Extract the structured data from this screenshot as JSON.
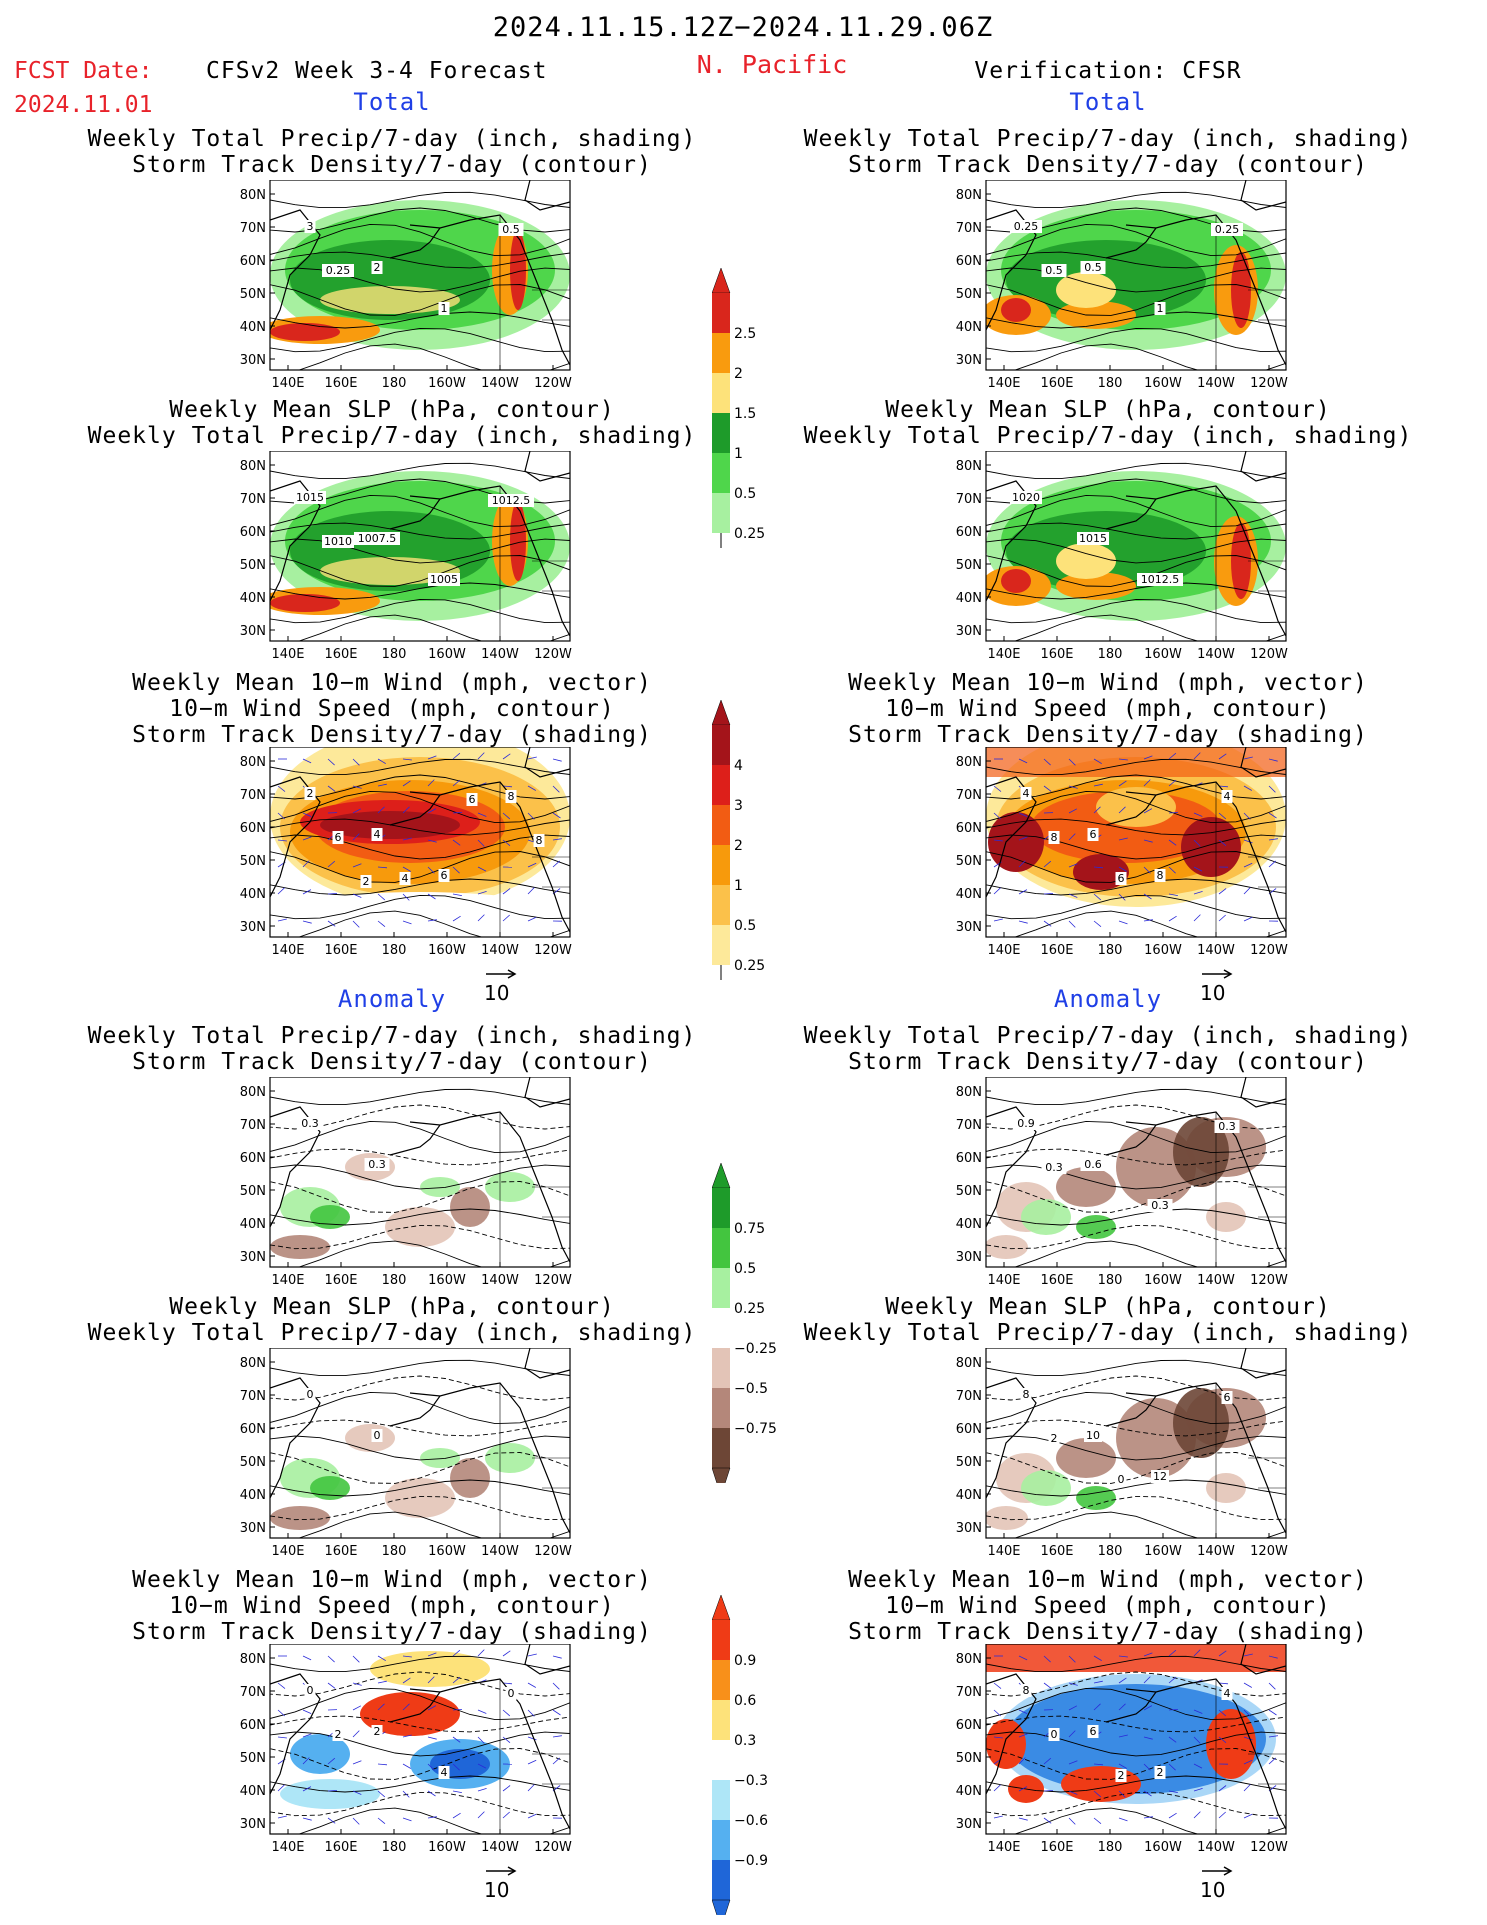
{
  "header": {
    "date_range": "2024.11.15.12Z−2024.11.29.06Z",
    "fcst_label": "FCST Date:",
    "fcst_date": "2024.11.01",
    "forecast_title": "CFSv2 Week 3-4 Forecast",
    "region": "N. Pacific",
    "verification": "Verification: CFSR"
  },
  "sections": {
    "total_label": "Total",
    "anomaly_label": "Anomaly"
  },
  "titles": {
    "precip_storm": [
      "Weekly Total Precip/7-day (inch, shading)",
      "Storm Track Density/7-day (contour)"
    ],
    "slp_precip": [
      "Weekly Mean SLP (hPa, contour)",
      "Weekly Total Precip/7-day (inch, shading)"
    ],
    "wind_storm": [
      "Weekly Mean 10−m Wind (mph, vector)",
      "10−m Wind Speed (mph, contour)",
      "Storm Track Density/7-day (shading)"
    ]
  },
  "axes": {
    "lat_labels": [
      "80N",
      "70N",
      "60N",
      "50N",
      "40N",
      "30N"
    ],
    "lon_labels": [
      "140E",
      "160E",
      "180",
      "160W",
      "140W",
      "120W"
    ]
  },
  "vector_ref": "10",
  "legends": {
    "precip_total": {
      "labels": [
        "2.5",
        "2",
        "1.5",
        "1",
        "0.5",
        "0.25"
      ],
      "colors": [
        "#d9261c",
        "#f99b0e",
        "#fde27a",
        "#1e9b2a",
        "#4fd64b",
        "#a7f0a0"
      ]
    },
    "storm_total": {
      "labels": [
        "4",
        "3",
        "2",
        "1",
        "0.5",
        "0.25"
      ],
      "colors": [
        "#a4141a",
        "#dd1f1a",
        "#f25c13",
        "#f79a0c",
        "#fbc14a",
        "#fde99a"
      ]
    },
    "precip_anom": {
      "labels": [
        "0.75",
        "0.5",
        "0.25",
        "−0.25",
        "−0.5",
        "−0.75"
      ],
      "colors": [
        "#1e9b2a",
        "#43c53f",
        "#a7f0a0",
        "#ffffff",
        "#e3c4b7",
        "#b4877a",
        "#6d4636"
      ]
    },
    "storm_anom": {
      "labels": [
        "0.9",
        "0.6",
        "0.3",
        "−0.3",
        "−0.6",
        "−0.9"
      ],
      "colors": [
        "#ef3b16",
        "#f8901a",
        "#fde27a",
        "#ffffff",
        "#aee6f7",
        "#55b0f0",
        "#1f66d8"
      ]
    }
  },
  "panels": {
    "f_p1": {
      "contour_labels": [
        "3",
        "2",
        "1",
        "0.5",
        "0.25"
      ]
    },
    "f_p2": {
      "contour_labels": [
        "1015",
        "1007.5",
        "1005",
        "1012.5",
        "1010"
      ]
    },
    "f_p3": {
      "contour_labels": [
        "2",
        "4",
        "6",
        "8",
        "6",
        "4",
        "6",
        "8",
        "2"
      ]
    },
    "f_p4": {
      "contour_labels": [
        "0.3",
        "0.3"
      ]
    },
    "f_p5": {
      "contour_labels": [
        "0",
        "0"
      ]
    },
    "f_p6": {
      "contour_labels": [
        "0",
        "2",
        "4",
        "0",
        "2"
      ]
    },
    "v_p1": {
      "contour_labels": [
        "0.25",
        "0.5",
        "1",
        "0.25",
        "0.5"
      ]
    },
    "v_p2": {
      "contour_labels": [
        "1020",
        "1015",
        "1012.5"
      ]
    },
    "v_p3": {
      "contour_labels": [
        "4",
        "6",
        "8",
        "4",
        "8",
        "6"
      ]
    },
    "v_p4": {
      "contour_labels": [
        "0.9",
        "0.6",
        "0.3",
        "0.3",
        "0.3"
      ]
    },
    "v_p5": {
      "contour_labels": [
        "8",
        "10",
        "12",
        "6",
        "2",
        "0"
      ]
    },
    "v_p6": {
      "contour_labels": [
        "8",
        "6",
        "2",
        "4",
        "0",
        "2"
      ]
    }
  }
}
